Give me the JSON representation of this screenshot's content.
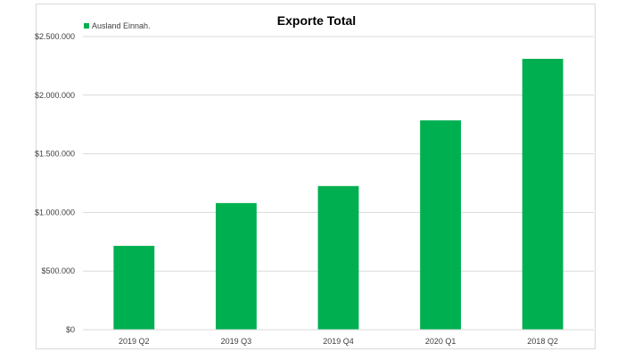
{
  "chart_data": {
    "type": "bar",
    "title": "Exporte Total",
    "categories": [
      "2019 Q2",
      "2019 Q3",
      "2019 Q4",
      "2020 Q1",
      "2018 Q2"
    ],
    "series": [
      {
        "name": "Ausland Einnah.",
        "color": "#00b050",
        "values": [
          715000,
          1080000,
          1225000,
          1785000,
          2310000
        ]
      }
    ],
    "ylim": [
      0,
      2500000
    ],
    "yticks": [
      0,
      500000,
      1000000,
      1500000,
      2000000,
      2500000
    ],
    "ytick_labels": [
      "$0",
      "$500.000",
      "$1.000.000",
      "$1.500.000",
      "$2.000.000",
      "$2.500.000"
    ],
    "grid": true,
    "legend_position": "top-left",
    "xlabel": "",
    "ylabel": ""
  }
}
